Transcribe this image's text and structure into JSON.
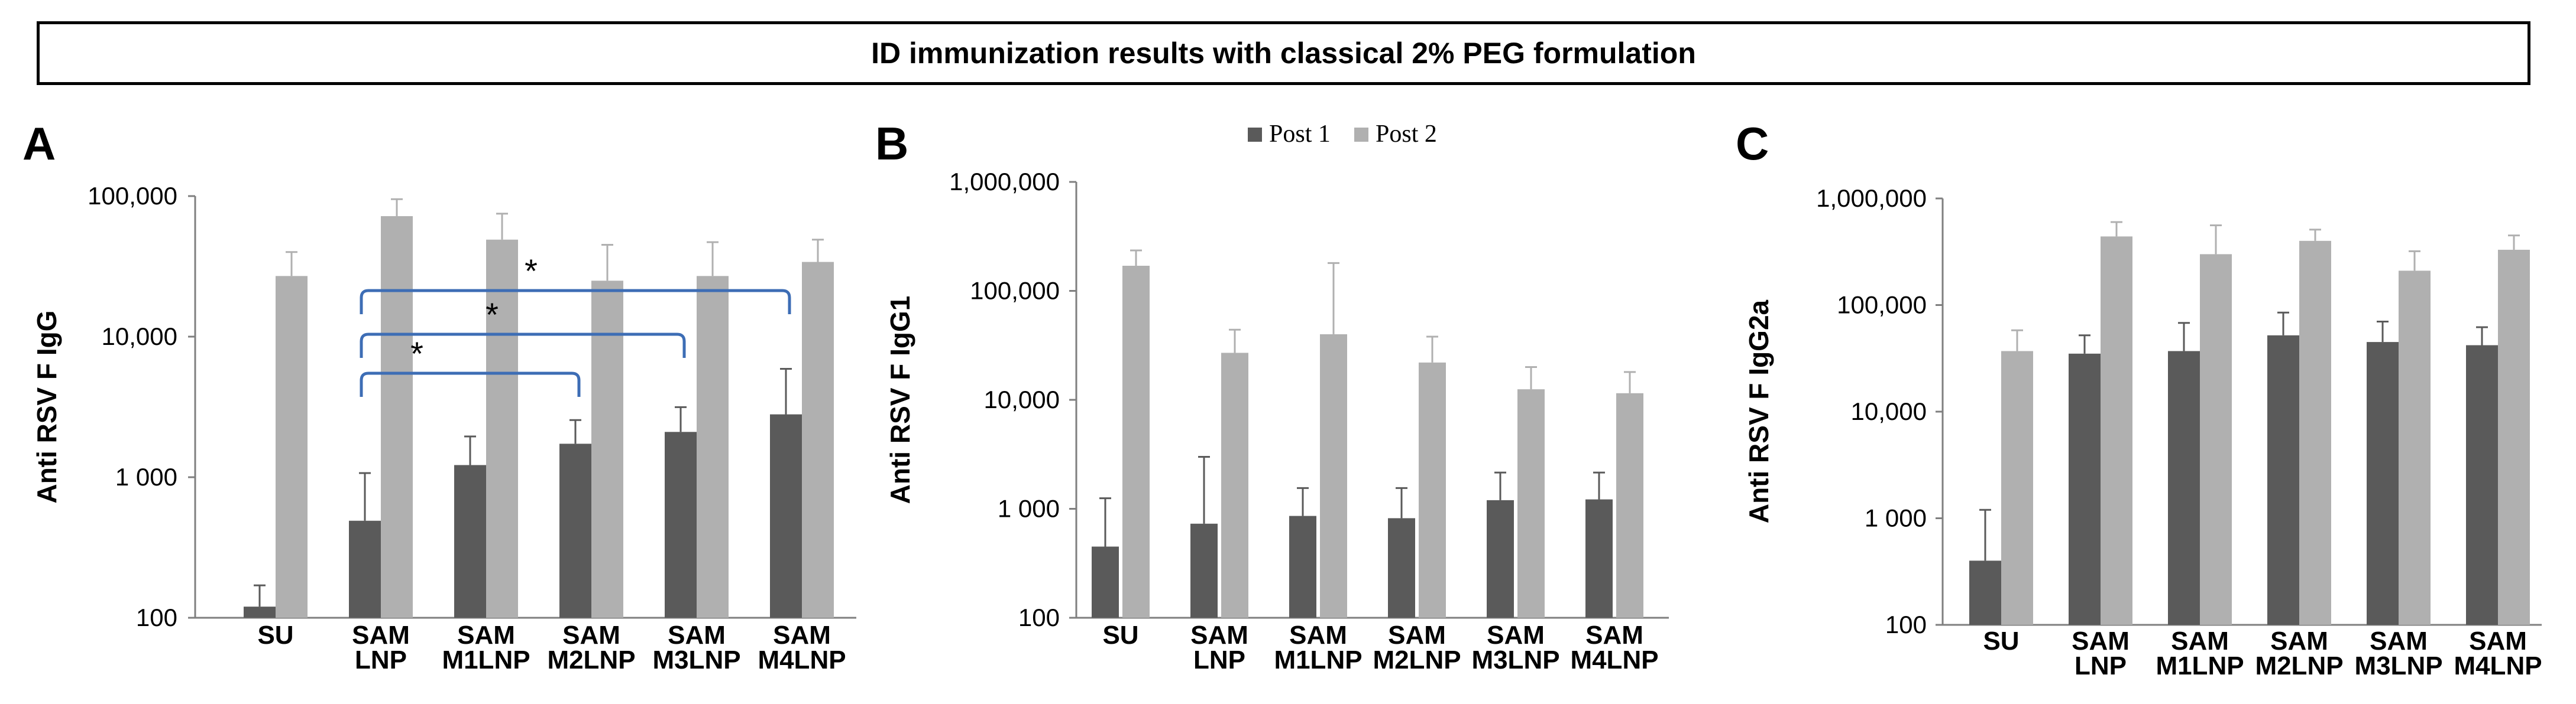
{
  "title": "ID immunization results with classical 2% PEG formulation",
  "legend": {
    "post1": "Post 1",
    "post2": "Post 2"
  },
  "colors": {
    "post1": "#5a5a5a",
    "post2": "#b0b0b0",
    "bracket": "#3d6db5"
  },
  "chart_data": [
    {
      "type": "bar",
      "panel": "A",
      "ylabel": "Anti RSV F IgG",
      "yscale": "log",
      "ylim": [
        100,
        100000
      ],
      "yticks": [
        "100",
        "1 000",
        "10,000",
        "100,000"
      ],
      "yticks_values": [
        100,
        1000,
        10000,
        100000
      ],
      "categories": [
        [
          "SU"
        ],
        [
          "SAM",
          "LNP"
        ],
        [
          "SAM",
          "M1LNP"
        ],
        [
          "SAM",
          "M2LNP"
        ],
        [
          "SAM",
          "M3LNP"
        ],
        [
          "SAM",
          "M4LNP"
        ]
      ],
      "series": [
        {
          "name": "Post 1",
          "values": [
            120,
            490,
            1220,
            1730,
            2100,
            2800
          ],
          "errors": [
            170,
            1070,
            1950,
            2550,
            3150,
            5900
          ]
        },
        {
          "name": "Post 2",
          "values": [
            27000,
            72000,
            49000,
            25000,
            27000,
            34000
          ],
          "errors": [
            40000,
            95000,
            75000,
            45000,
            47000,
            49000
          ]
        }
      ],
      "significance": [
        {
          "from": 1,
          "to": 3,
          "label": "*"
        },
        {
          "from": 1,
          "to": 4,
          "label": "*"
        },
        {
          "from": 1,
          "to": 5,
          "label": "*"
        }
      ]
    },
    {
      "type": "bar",
      "panel": "B",
      "ylabel": "Anti RSV F IgG1",
      "yscale": "log",
      "ylim": [
        100,
        1000000
      ],
      "yticks": [
        "100",
        "1 000",
        "10,000",
        "100,000",
        "1,000,000"
      ],
      "yticks_values": [
        100,
        1000,
        10000,
        100000,
        1000000
      ],
      "categories": [
        [
          "SU"
        ],
        [
          "SAM",
          "LNP"
        ],
        [
          "SAM",
          "M1LNP"
        ],
        [
          "SAM",
          "M2LNP"
        ],
        [
          "SAM",
          "M3LNP"
        ],
        [
          "SAM",
          "M4LNP"
        ]
      ],
      "series": [
        {
          "name": "Post 1",
          "values": [
            450,
            730,
            860,
            820,
            1200,
            1220
          ],
          "errors": [
            1250,
            3000,
            1550,
            1550,
            2150,
            2150
          ]
        },
        {
          "name": "Post 2",
          "values": [
            170000,
            27000,
            40000,
            22000,
            12500,
            11500
          ],
          "errors": [
            235000,
            44000,
            180000,
            38000,
            20000,
            18000
          ]
        }
      ]
    },
    {
      "type": "bar",
      "panel": "C",
      "ylabel": "Anti RSV F IgG2a",
      "yscale": "log",
      "ylim": [
        100,
        1000000
      ],
      "yticks": [
        "100",
        "1 000",
        "10,000",
        "100,000",
        "1,000,000"
      ],
      "yticks_values": [
        100,
        1000,
        10000,
        100000,
        1000000
      ],
      "categories": [
        [
          "SU"
        ],
        [
          "SAM",
          "LNP"
        ],
        [
          "SAM",
          "M1LNP"
        ],
        [
          "SAM",
          "M2LNP"
        ],
        [
          "SAM",
          "M3LNP"
        ],
        [
          "SAM",
          "M4LNP"
        ]
      ],
      "series": [
        {
          "name": "Post 1",
          "values": [
            400,
            35000,
            37000,
            52000,
            45000,
            42000
          ],
          "errors": [
            1200,
            52000,
            68000,
            85000,
            70000,
            62000
          ]
        },
        {
          "name": "Post 2",
          "values": [
            37000,
            440000,
            300000,
            400000,
            210000,
            330000
          ],
          "errors": [
            58000,
            600000,
            560000,
            510000,
            320000,
            450000
          ]
        }
      ]
    }
  ]
}
